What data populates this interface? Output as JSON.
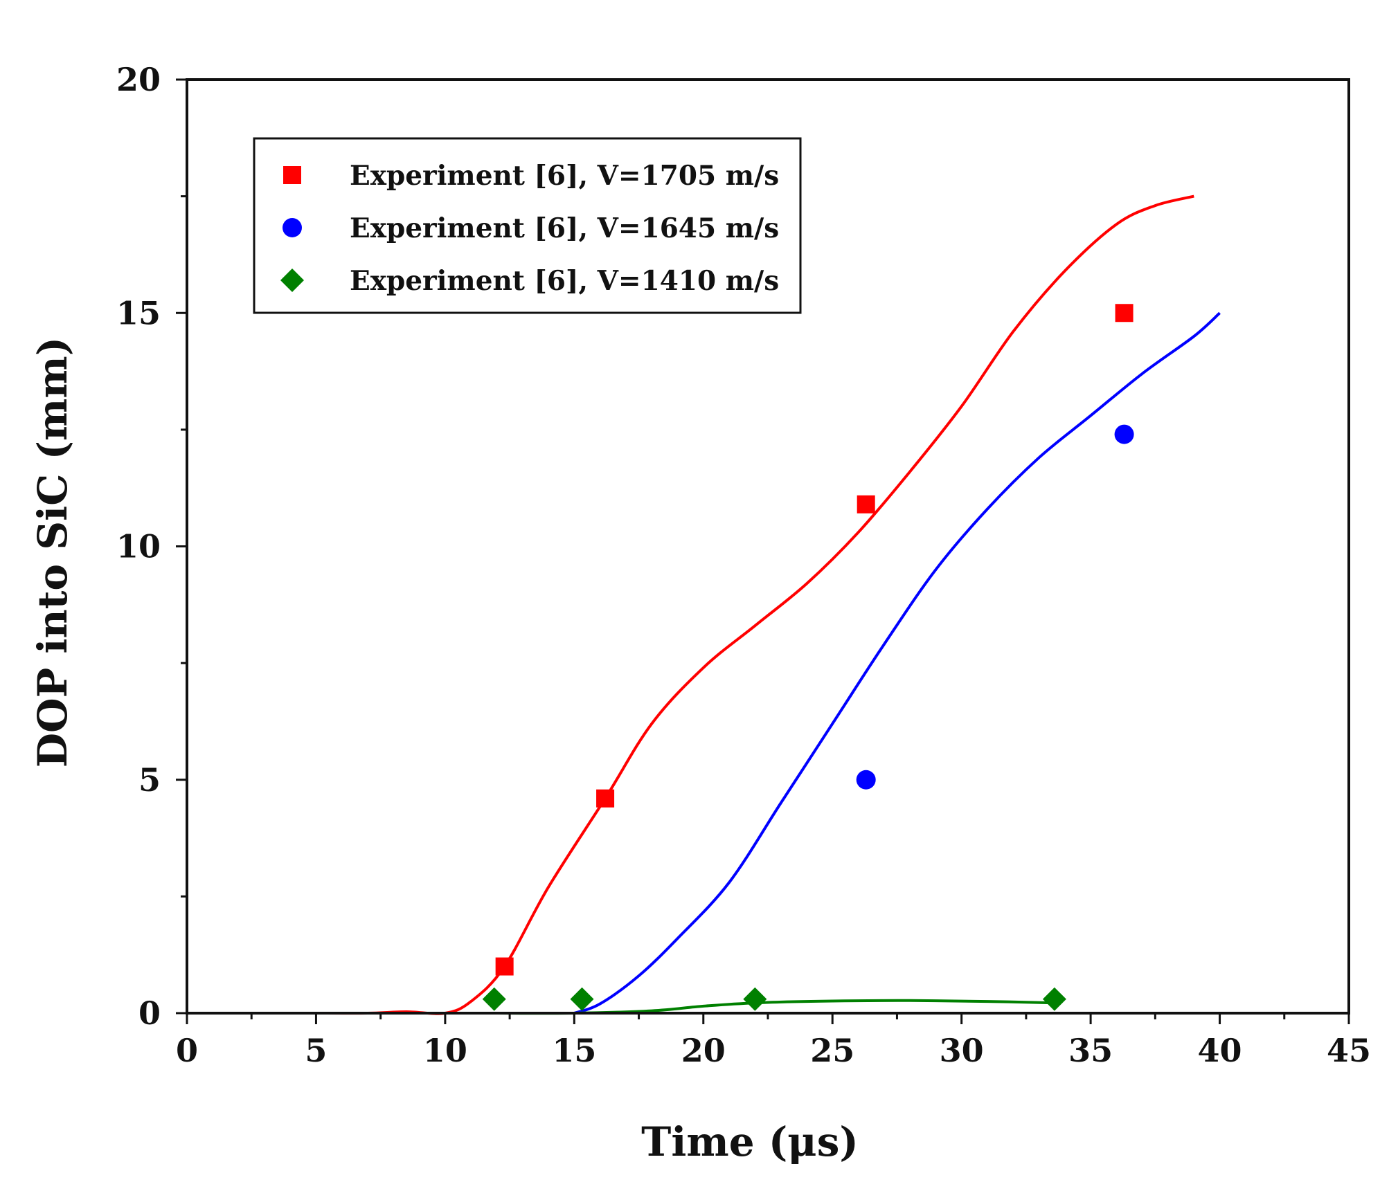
{
  "chart_data": {
    "type": "scatter",
    "title": "",
    "xlabel": "Time (μs)",
    "ylabel": "DOP into SiC (mm)",
    "xlim": [
      0,
      45
    ],
    "ylim": [
      0,
      20
    ],
    "xticks": [
      0,
      5,
      10,
      15,
      20,
      25,
      30,
      35,
      40,
      45
    ],
    "yticks": [
      0,
      5,
      10,
      15,
      20
    ],
    "grid": false,
    "legend_position": "top-left",
    "series": [
      {
        "name": "Experiment [6], V=1705 m/s",
        "color": "#ff0000",
        "marker": "square",
        "points": [
          [
            12.3,
            1.0
          ],
          [
            16.2,
            4.6
          ],
          [
            26.3,
            10.9
          ],
          [
            36.3,
            15.0
          ]
        ],
        "curve": [
          [
            5.0,
            0.0
          ],
          [
            7.0,
            0.0
          ],
          [
            8.5,
            0.03
          ],
          [
            10.0,
            0.0
          ],
          [
            11.0,
            0.25
          ],
          [
            12.3,
            1.0
          ],
          [
            14.0,
            2.7
          ],
          [
            16.2,
            4.6
          ],
          [
            18.0,
            6.2
          ],
          [
            20.0,
            7.4
          ],
          [
            22.0,
            8.3
          ],
          [
            24.0,
            9.2
          ],
          [
            26.0,
            10.3
          ],
          [
            28.0,
            11.6
          ],
          [
            30.0,
            13.0
          ],
          [
            32.0,
            14.6
          ],
          [
            34.0,
            15.9
          ],
          [
            36.0,
            16.9
          ],
          [
            37.5,
            17.3
          ],
          [
            39.0,
            17.5
          ]
        ]
      },
      {
        "name": "Experiment [6], V=1645 m/s",
        "color": "#0000ff",
        "marker": "circle",
        "points": [
          [
            26.3,
            5.0
          ],
          [
            36.3,
            12.4
          ]
        ],
        "curve": [
          [
            15.0,
            0.0
          ],
          [
            16.0,
            0.2
          ],
          [
            17.5,
            0.8
          ],
          [
            19.0,
            1.6
          ],
          [
            21.0,
            2.8
          ],
          [
            23.0,
            4.5
          ],
          [
            25.0,
            6.2
          ],
          [
            27.0,
            7.9
          ],
          [
            29.0,
            9.5
          ],
          [
            31.0,
            10.8
          ],
          [
            33.0,
            11.9
          ],
          [
            35.0,
            12.8
          ],
          [
            37.0,
            13.7
          ],
          [
            39.0,
            14.5
          ],
          [
            40.0,
            15.0
          ]
        ]
      },
      {
        "name": "Experiment [6], V=1410 m/s",
        "color": "#008000",
        "marker": "diamond",
        "points": [
          [
            11.9,
            0.3
          ],
          [
            15.3,
            0.3
          ],
          [
            22.0,
            0.3
          ],
          [
            33.6,
            0.3
          ]
        ],
        "curve": [
          [
            12.0,
            0.0
          ],
          [
            15.0,
            0.0
          ],
          [
            18.0,
            0.05
          ],
          [
            20.0,
            0.15
          ],
          [
            22.0,
            0.22
          ],
          [
            25.0,
            0.26
          ],
          [
            28.0,
            0.27
          ],
          [
            31.0,
            0.25
          ],
          [
            33.6,
            0.22
          ]
        ]
      }
    ]
  }
}
